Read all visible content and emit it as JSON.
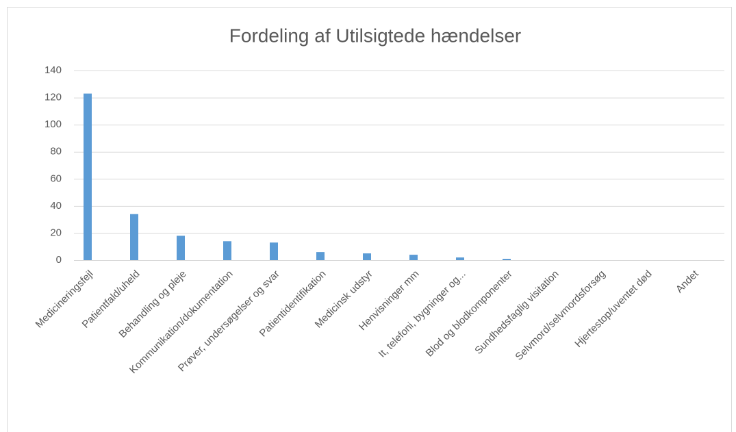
{
  "chart_data": {
    "type": "bar",
    "title": "Fordeling af Utilsigtede hændelser",
    "categories": [
      "Medicineringsfejl",
      "Patientfald/uheld",
      "Behandling og pleje",
      "Kommunikation/dokumentation",
      "Prøver, undersøgelser og svar",
      "Patientidentifikation",
      "Medicinsk udstyr",
      "Henvisninger mm",
      "It, telefoni, bygninger og...",
      "Blod og blodkomponenter",
      "Sundhedsfaglig visitation",
      "Selvmord/selvmordsforsøg",
      "Hjertestop/uventet  død",
      "Andet"
    ],
    "values": [
      123,
      34,
      18,
      14,
      13,
      6,
      5,
      4,
      2,
      1,
      0,
      0,
      0,
      0
    ],
    "color": "#5b9bd5",
    "ylim": [
      0,
      140
    ],
    "yticks": [
      0,
      20,
      40,
      60,
      80,
      100,
      120,
      140
    ],
    "grid": true
  }
}
